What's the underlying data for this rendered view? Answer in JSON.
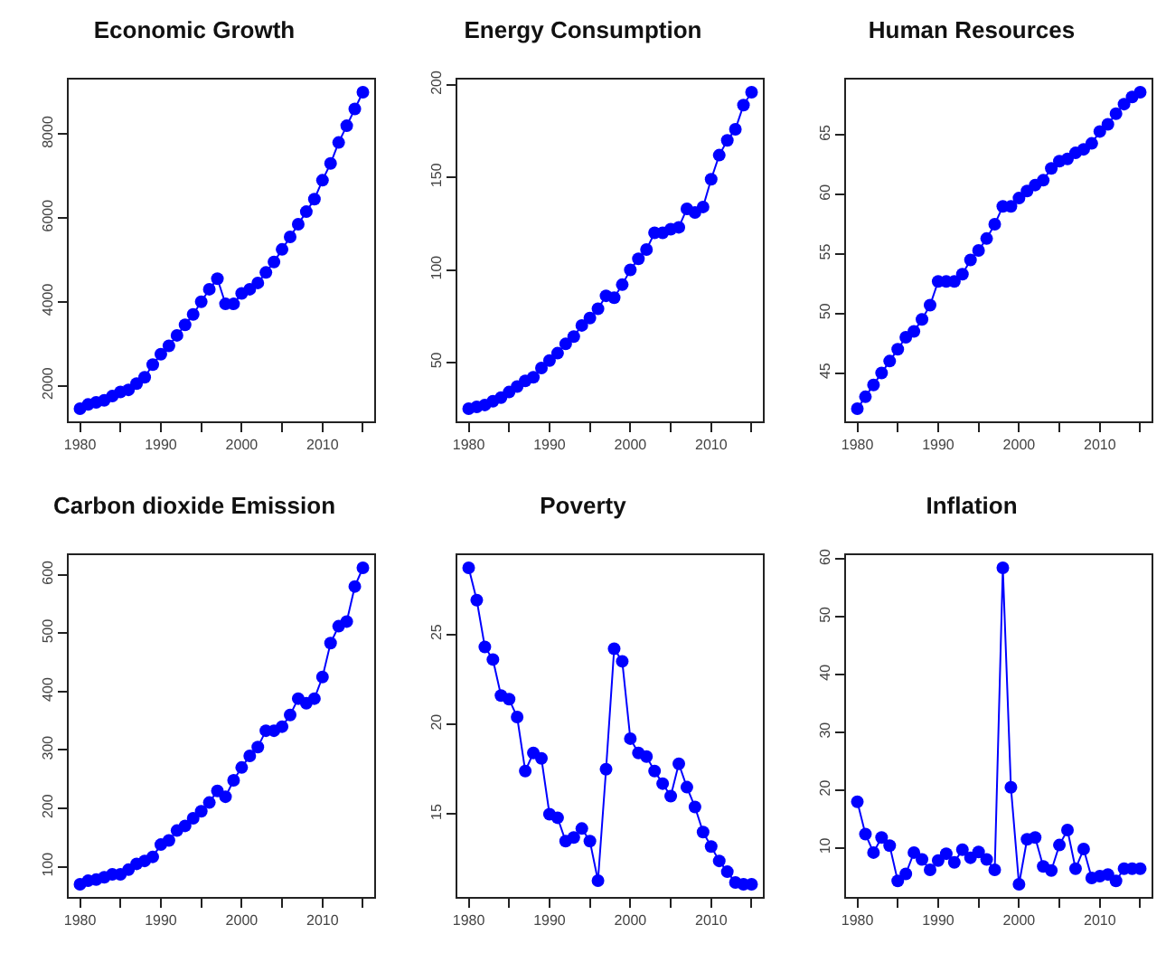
{
  "chart_data": [
    {
      "type": "line",
      "title": "Economic Growth",
      "marker": "circle",
      "grid": false,
      "x": [
        1980,
        1981,
        1982,
        1983,
        1984,
        1985,
        1986,
        1987,
        1988,
        1989,
        1990,
        1991,
        1992,
        1993,
        1994,
        1995,
        1996,
        1997,
        1998,
        1999,
        2000,
        2001,
        2002,
        2003,
        2004,
        2005,
        2006,
        2007,
        2008,
        2009,
        2010,
        2011,
        2012,
        2013,
        2014,
        2015
      ],
      "series": [
        {
          "color": "#0000ff",
          "values": [
            1450,
            1550,
            1600,
            1650,
            1750,
            1850,
            1900,
            2050,
            2200,
            2500,
            2750,
            2950,
            3200,
            3450,
            3700,
            4000,
            4300,
            4550,
            3950,
            3950,
            4200,
            4300,
            4450,
            4700,
            4950,
            5250,
            5550,
            5850,
            6150,
            6450,
            6900,
            7300,
            7800,
            8200,
            8600,
            9000
          ]
        }
      ],
      "xlim": [
        1978.6,
        2016.4
      ],
      "xticks": [
        1980,
        {
          "value": 1985,
          "label": null
        },
        1990,
        {
          "value": 1995,
          "label": null
        },
        2000,
        {
          "value": 2005,
          "label": null
        },
        2010,
        {
          "value": 2015,
          "label": null
        }
      ],
      "ylim": [
        1148,
        9302
      ],
      "yticks": [
        2000,
        4000,
        6000,
        8000
      ]
    },
    {
      "type": "line",
      "title": "Energy Consumption",
      "marker": "circle",
      "grid": false,
      "x": [
        1980,
        1981,
        1982,
        1983,
        1984,
        1985,
        1986,
        1987,
        1988,
        1989,
        1990,
        1991,
        1992,
        1993,
        1994,
        1995,
        1996,
        1997,
        1998,
        1999,
        2000,
        2001,
        2002,
        2003,
        2004,
        2005,
        2006,
        2007,
        2008,
        2009,
        2010,
        2011,
        2012,
        2013,
        2014,
        2015
      ],
      "series": [
        {
          "color": "#0000ff",
          "values": [
            25,
            26,
            27,
            29,
            31,
            34,
            37,
            40,
            42,
            47,
            51,
            55,
            60,
            64,
            70,
            74,
            79,
            86,
            85,
            92,
            100,
            106,
            111,
            120,
            120,
            122,
            123,
            133,
            131,
            134,
            149,
            162,
            170,
            176,
            189,
            196
          ]
        }
      ],
      "xlim": [
        1978.6,
        2016.4
      ],
      "xticks": [
        1980,
        {
          "value": 1985,
          "label": null
        },
        1990,
        {
          "value": 1995,
          "label": null
        },
        2000,
        {
          "value": 2005,
          "label": null
        },
        2010,
        {
          "value": 2015,
          "label": null
        }
      ],
      "ylim": [
        18.16,
        202.84
      ],
      "yticks": [
        50,
        100,
        150,
        200
      ]
    },
    {
      "type": "line",
      "title": "Human Resources",
      "marker": "circle",
      "grid": false,
      "x": [
        1980,
        1981,
        1982,
        1983,
        1984,
        1985,
        1986,
        1987,
        1988,
        1989,
        1990,
        1991,
        1992,
        1993,
        1994,
        1995,
        1996,
        1997,
        1998,
        1999,
        2000,
        2001,
        2002,
        2003,
        2004,
        2005,
        2006,
        2007,
        2008,
        2009,
        2010,
        2011,
        2012,
        2013,
        2014,
        2015
      ],
      "series": [
        {
          "color": "#0000ff",
          "values": [
            42,
            43,
            44,
            45,
            46,
            47,
            48,
            48.5,
            49.5,
            50.7,
            52.7,
            52.7,
            52.7,
            53.3,
            54.5,
            55.3,
            56.3,
            57.5,
            59,
            59,
            59.7,
            60.3,
            60.8,
            61.2,
            62.2,
            62.8,
            63,
            63.5,
            63.8,
            64.3,
            65.3,
            65.9,
            66.8,
            67.6,
            68.2,
            68.6
          ]
        }
      ],
      "xlim": [
        1978.6,
        2016.4
      ],
      "xticks": [
        1980,
        {
          "value": 1985,
          "label": null
        },
        1990,
        {
          "value": 1995,
          "label": null
        },
        2000,
        {
          "value": 2005,
          "label": null
        },
        2010,
        {
          "value": 2015,
          "label": null
        }
      ],
      "ylim": [
        40.936,
        69.664
      ],
      "yticks": [
        45,
        50,
        55,
        60,
        65
      ]
    },
    {
      "type": "line",
      "title": "Carbon dioxide Emission",
      "marker": "circle",
      "grid": false,
      "x": [
        1980,
        1981,
        1982,
        1983,
        1984,
        1985,
        1986,
        1987,
        1988,
        1989,
        1990,
        1991,
        1992,
        1993,
        1994,
        1995,
        1996,
        1997,
        1998,
        1999,
        2000,
        2001,
        2002,
        2003,
        2004,
        2005,
        2006,
        2007,
        2008,
        2009,
        2010,
        2011,
        2012,
        2013,
        2014,
        2015
      ],
      "series": [
        {
          "color": "#0000ff",
          "values": [
            70,
            76,
            78,
            82,
            87,
            87,
            95,
            105,
            110,
            117,
            138,
            145,
            162,
            170,
            183,
            195,
            210,
            230,
            220,
            248,
            270,
            290,
            305,
            333,
            333,
            340,
            360,
            388,
            380,
            388,
            425,
            483,
            512,
            520,
            580,
            612
          ]
        }
      ],
      "xlim": [
        1978.6,
        2016.4
      ],
      "xticks": [
        1980,
        {
          "value": 1985,
          "label": null
        },
        1990,
        {
          "value": 1995,
          "label": null
        },
        2000,
        {
          "value": 2005,
          "label": null
        },
        2010,
        {
          "value": 2015,
          "label": null
        }
      ],
      "ylim": [
        48.32,
        633.68
      ],
      "yticks": [
        100,
        200,
        300,
        400,
        500,
        600
      ]
    },
    {
      "type": "line",
      "title": "Poverty",
      "marker": "circle",
      "grid": false,
      "x": [
        1980,
        1981,
        1982,
        1983,
        1984,
        1985,
        1986,
        1987,
        1988,
        1989,
        1990,
        1991,
        1992,
        1993,
        1994,
        1995,
        1996,
        1997,
        1998,
        1999,
        2000,
        2001,
        2002,
        2003,
        2004,
        2005,
        2006,
        2007,
        2008,
        2009,
        2010,
        2011,
        2012,
        2013,
        2014,
        2015
      ],
      "series": [
        {
          "color": "#0000ff",
          "values": [
            28.7,
            26.9,
            24.3,
            23.6,
            21.6,
            21.4,
            20.4,
            17.4,
            18.4,
            18.1,
            15.0,
            14.8,
            13.5,
            13.7,
            14.2,
            13.5,
            11.3,
            17.5,
            24.2,
            23.5,
            19.2,
            18.4,
            18.2,
            17.4,
            16.7,
            16.0,
            17.8,
            16.5,
            15.4,
            14.0,
            13.2,
            12.4,
            11.8,
            11.2,
            11.1,
            11.1
          ]
        }
      ],
      "xlim": [
        1978.6,
        2016.4
      ],
      "xticks": [
        1980,
        {
          "value": 1985,
          "label": null
        },
        1990,
        {
          "value": 1995,
          "label": null
        },
        2000,
        {
          "value": 2005,
          "label": null
        },
        2010,
        {
          "value": 2015,
          "label": null
        }
      ],
      "ylim": [
        10.396,
        29.404
      ],
      "yticks": [
        15,
        20,
        25
      ]
    },
    {
      "type": "line",
      "title": "Inflation",
      "marker": "circle",
      "grid": false,
      "x": [
        1980,
        1981,
        1982,
        1983,
        1984,
        1985,
        1986,
        1987,
        1988,
        1989,
        1990,
        1991,
        1992,
        1993,
        1994,
        1995,
        1996,
        1997,
        1998,
        1999,
        2000,
        2001,
        2002,
        2003,
        2004,
        2005,
        2006,
        2007,
        2008,
        2009,
        2010,
        2011,
        2012,
        2013,
        2014,
        2015
      ],
      "series": [
        {
          "color": "#0000ff",
          "values": [
            18,
            12.4,
            9.2,
            11.8,
            10.4,
            4.3,
            5.5,
            9.2,
            8.0,
            6.2,
            7.8,
            9.0,
            7.5,
            9.7,
            8.3,
            9.3,
            8.0,
            6.2,
            58.5,
            20.5,
            3.7,
            11.5,
            11.8,
            6.8,
            6.1,
            10.5,
            13.1,
            6.4,
            9.8,
            4.8,
            5.1,
            5.4,
            4.3,
            6.4,
            6.4,
            6.4
          ]
        }
      ],
      "xlim": [
        1978.6,
        2016.4
      ],
      "xticks": [
        1980,
        {
          "value": 1985,
          "label": null
        },
        1990,
        {
          "value": 1995,
          "label": null
        },
        2000,
        {
          "value": 2005,
          "label": null
        },
        2010,
        {
          "value": 2015,
          "label": null
        }
      ],
      "ylim": [
        1.51,
        60.69
      ],
      "yticks": [
        10,
        20,
        30,
        40,
        50,
        60
      ]
    }
  ]
}
